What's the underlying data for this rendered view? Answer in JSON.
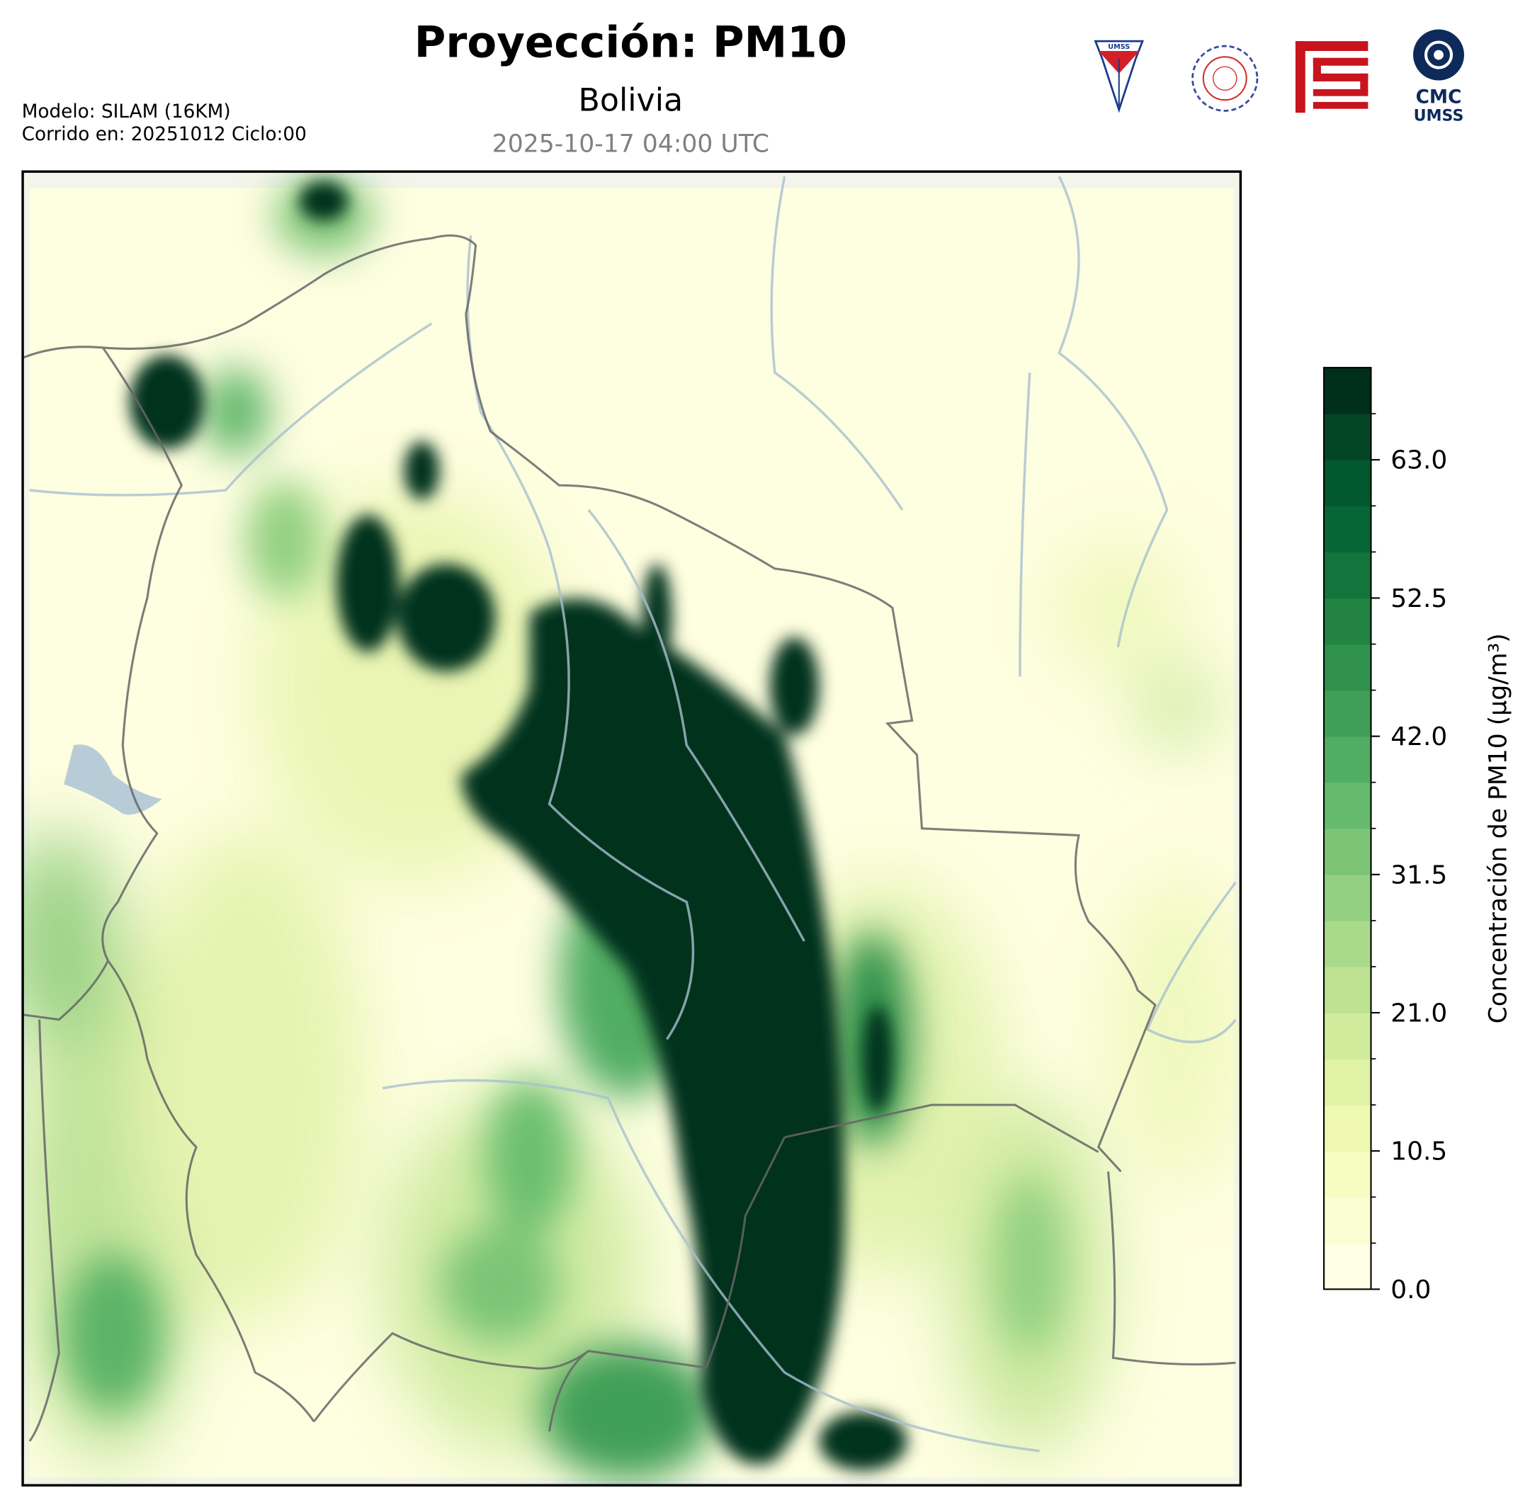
{
  "header": {
    "title": "Proyección: PM10",
    "subtitle": "Bolivia",
    "valid_time": "2025-10-17 04:00 UTC",
    "model": "Modelo: SILAM (16KM)",
    "run": "Corrido en: 20251012 Ciclo:00"
  },
  "logos": {
    "umss_shield": "UMSS",
    "cmc_line1": "CMC",
    "cmc_line2": "UMSS"
  },
  "colorbar": {
    "label": "Concentración de PM10 (µg/m³)",
    "lim": [
      0,
      70
    ],
    "ticks": [
      {
        "value": 0,
        "label": "0.0"
      },
      10.5,
      {
        "value": 21,
        "label": "21.0"
      },
      31.5,
      {
        "value": 42,
        "label": "42.0"
      },
      52.5,
      {
        "value": 63,
        "label": "63.0"
      }
    ],
    "colors": [
      "#ffffe5",
      "#fbfdd3",
      "#f7fcc0",
      "#eef8b1",
      "#e0f2a5",
      "#d0eb9b",
      "#bde392",
      "#a9da8a",
      "#93d081",
      "#7cc577",
      "#66ba6e",
      "#51ad63",
      "#3f9f57",
      "#2f914c",
      "#228343",
      "#13743c",
      "#076636",
      "#02582f",
      "#024626",
      "#00301c"
    ]
  }
}
